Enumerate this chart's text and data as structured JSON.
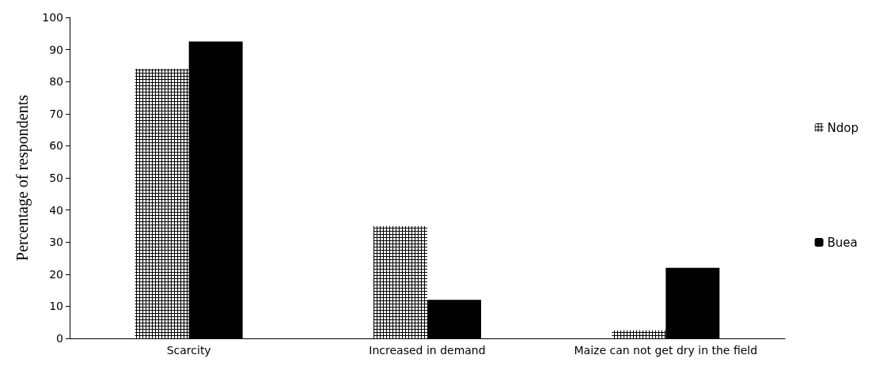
{
  "chart_data": {
    "type": "bar",
    "ylabel": "Percentage of respondents",
    "categories": [
      "Scarcity",
      "Increased in demand",
      "Maize can not get dry in the field"
    ],
    "series": [
      {
        "name": "Ndop",
        "color": "#ffffff",
        "values": [
          84,
          35,
          2.5
        ]
      },
      {
        "name": "Buea",
        "color": "#000000",
        "values": [
          92.5,
          12,
          22
        ]
      }
    ],
    "ylim": [
      0,
      100
    ],
    "yticks": [
      0,
      10,
      20,
      30,
      40,
      50,
      60,
      70,
      80,
      90,
      100
    ],
    "grid": false,
    "legend": "right"
  }
}
